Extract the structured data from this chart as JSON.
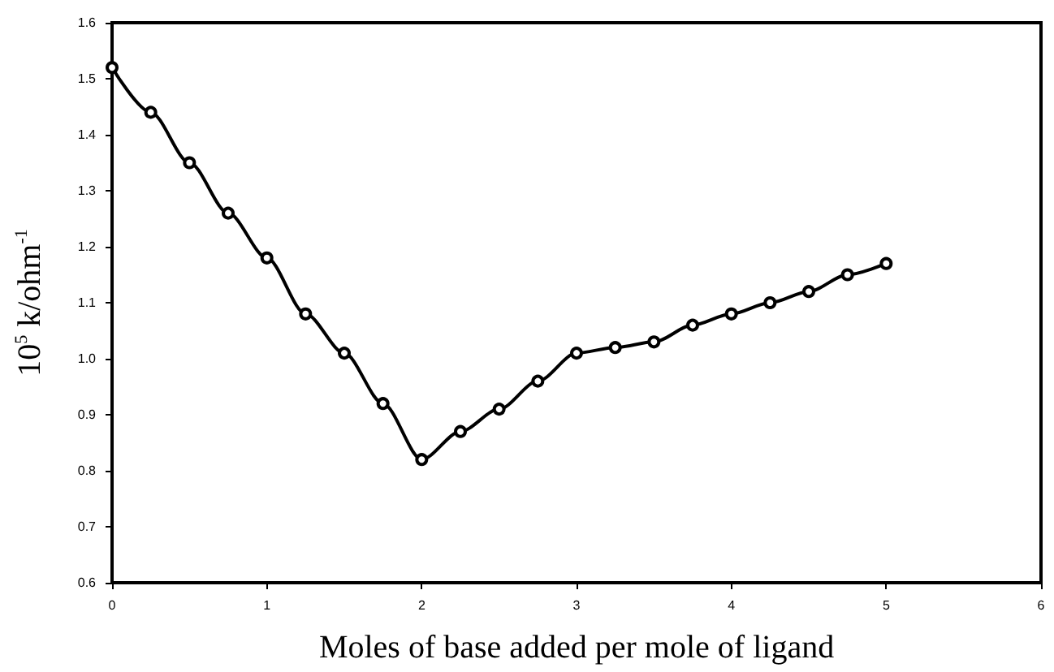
{
  "chart_data": {
    "type": "line",
    "xlabel": "Moles of base added per mole of ligand",
    "ylabel": "10$^{5}$ k/ohm$^{-1}$",
    "x": [
      0,
      0.25,
      0.5,
      0.75,
      1,
      1.25,
      1.5,
      1.75,
      2,
      2.25,
      2.5,
      2.75,
      3,
      3.25,
      3.5,
      3.75,
      4,
      4.25,
      4.5,
      4.75,
      5
    ],
    "series": [
      {
        "color": "#000000",
        "values": [
          1.52,
          1.44,
          1.35,
          1.26,
          1.18,
          1.08,
          1.01,
          0.92,
          0.82,
          0.87,
          0.91,
          0.96,
          1.01,
          1.02,
          1.03,
          1.06,
          1.08,
          1.1,
          1.12,
          1.15,
          1.17
        ]
      }
    ],
    "xlim": [
      0,
      6
    ],
    "xticks": [
      0,
      1,
      2,
      3,
      4,
      5,
      6
    ],
    "ylim": [
      0.6,
      1.6
    ],
    "yticks": [
      0.6,
      0.7,
      0.8,
      0.9,
      {
        "value": 1,
        "label": "1.0"
      },
      1.1,
      1.2,
      1.3,
      1.4,
      1.5,
      1.6
    ],
    "marker": "circle",
    "line_style": "solid"
  }
}
